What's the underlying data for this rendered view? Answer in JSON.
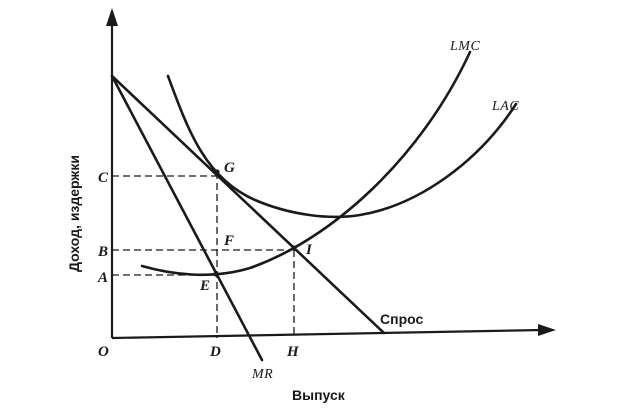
{
  "axes": {
    "y_title": "Доход, издержки",
    "x_title": "Выпуск",
    "origin": "O"
  },
  "curves": {
    "lmc": "LMC",
    "lac": "LAC",
    "demand": "Спрос",
    "mr": "MR"
  },
  "points": {
    "c": "C",
    "b": "B",
    "a": "A",
    "g": "G",
    "f": "F",
    "i": "I",
    "e": "E",
    "d": "D",
    "h": "H"
  }
}
